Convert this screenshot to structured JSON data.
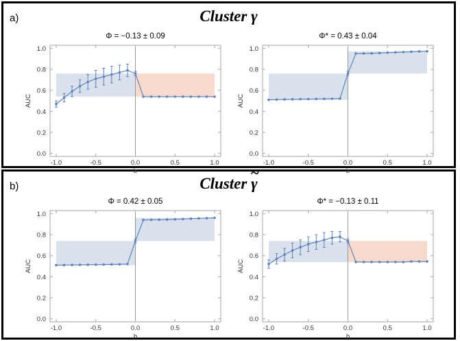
{
  "panels": [
    {
      "label": "a)",
      "title_word": "Cluster",
      "title_symbol": "γ"
    },
    {
      "label": "b)",
      "title_word": "Cluster",
      "title_symbol": "γ"
    }
  ],
  "colors": {
    "line": "#5c82bf",
    "band_blue": "#d9e1ec",
    "band_red": "#f8dacd",
    "frame": "#a6a6a6",
    "zero_line": "#8c8c8c",
    "tick_text": "#333333"
  },
  "chart_data": [
    {
      "id": "a-left",
      "type": "line",
      "title": "Φ = −0.13 ± 0.09",
      "xlabel": "b",
      "ylabel": "AUC",
      "xlim": [
        -1.0,
        1.0
      ],
      "ylim": [
        0.0,
        1.0
      ],
      "xticks": [
        "-1.0",
        "-0.5",
        "0.0",
        "0.5",
        "1.0"
      ],
      "yticks": [
        "0.0",
        "0.2",
        "0.4",
        "0.6",
        "0.8",
        "1.0"
      ],
      "bands": [
        {
          "x": [
            -1.0,
            0.0
          ],
          "y": [
            0.54,
            0.76
          ],
          "color": "blue"
        },
        {
          "x": [
            0.0,
            1.0
          ],
          "y": [
            0.54,
            0.76
          ],
          "color": "red"
        }
      ],
      "x": [
        -1.0,
        -0.9,
        -0.8,
        -0.7,
        -0.6,
        -0.5,
        -0.4,
        -0.3,
        -0.2,
        -0.1,
        0.0,
        0.1,
        0.2,
        0.3,
        0.4,
        0.5,
        0.6,
        0.7,
        0.8,
        0.9,
        1.0
      ],
      "values": [
        0.47,
        0.53,
        0.59,
        0.64,
        0.68,
        0.71,
        0.73,
        0.75,
        0.77,
        0.79,
        0.76,
        0.54,
        0.54,
        0.54,
        0.54,
        0.54,
        0.54,
        0.54,
        0.54,
        0.54,
        0.54
      ],
      "errors": [
        0.03,
        0.04,
        0.05,
        0.06,
        0.07,
        0.08,
        0.08,
        0.08,
        0.07,
        0.06,
        0.02,
        0.005,
        0.005,
        0.005,
        0.005,
        0.005,
        0.005,
        0.005,
        0.005,
        0.005,
        0.005
      ]
    },
    {
      "id": "a-right",
      "type": "line",
      "title": "Φ* = 0.43 ± 0.04",
      "xlabel": "b",
      "ylabel": "AUC",
      "xlim": [
        -1.0,
        1.0
      ],
      "ylim": [
        0.0,
        1.0
      ],
      "xticks": [
        "-1.0",
        "-0.5",
        "0.0",
        "0.5",
        "1.0"
      ],
      "yticks": [
        "0.0",
        "0.2",
        "0.4",
        "0.6",
        "0.8",
        "1.0"
      ],
      "bands": [
        {
          "x": [
            -1.0,
            0.0
          ],
          "y": [
            0.51,
            0.76
          ],
          "color": "blue"
        },
        {
          "x": [
            0.0,
            1.0
          ],
          "y": [
            0.76,
            0.97
          ],
          "color": "blue"
        }
      ],
      "x": [
        -1.0,
        -0.9,
        -0.8,
        -0.7,
        -0.6,
        -0.5,
        -0.4,
        -0.3,
        -0.2,
        -0.1,
        0.0,
        0.1,
        0.2,
        0.3,
        0.4,
        0.5,
        0.6,
        0.7,
        0.8,
        0.9,
        1.0
      ],
      "values": [
        0.51,
        0.512,
        0.514,
        0.515,
        0.516,
        0.517,
        0.518,
        0.519,
        0.52,
        0.522,
        0.76,
        0.95,
        0.951,
        0.952,
        0.955,
        0.958,
        0.961,
        0.964,
        0.967,
        0.97,
        0.972
      ],
      "errors": [
        0.003,
        0.003,
        0.003,
        0.003,
        0.003,
        0.003,
        0.003,
        0.003,
        0.003,
        0.003,
        0.02,
        0.004,
        0.004,
        0.004,
        0.004,
        0.004,
        0.004,
        0.004,
        0.004,
        0.004,
        0.004
      ]
    },
    {
      "id": "b-left",
      "type": "line",
      "title": "Φ = 0.42 ± 0.05",
      "xlabel": "b",
      "ylabel": "AUC",
      "xlim": [
        -1.0,
        1.0
      ],
      "ylim": [
        0.0,
        1.0
      ],
      "xticks": [
        "-1.0",
        "-0.5",
        "0.0",
        "0.5",
        "1.0"
      ],
      "yticks": [
        "0.0",
        "0.2",
        "0.4",
        "0.6",
        "0.8",
        "1.0"
      ],
      "bands": [
        {
          "x": [
            -1.0,
            0.0
          ],
          "y": [
            0.51,
            0.74
          ],
          "color": "blue"
        },
        {
          "x": [
            0.0,
            1.0
          ],
          "y": [
            0.74,
            0.96
          ],
          "color": "blue"
        }
      ],
      "x": [
        -1.0,
        -0.9,
        -0.8,
        -0.7,
        -0.6,
        -0.5,
        -0.4,
        -0.3,
        -0.2,
        -0.1,
        0.0,
        0.1,
        0.2,
        0.3,
        0.4,
        0.5,
        0.6,
        0.7,
        0.8,
        0.9,
        1.0
      ],
      "values": [
        0.51,
        0.511,
        0.512,
        0.513,
        0.514,
        0.515,
        0.516,
        0.517,
        0.518,
        0.52,
        0.74,
        0.94,
        0.941,
        0.942,
        0.944,
        0.946,
        0.949,
        0.952,
        0.955,
        0.957,
        0.96
      ],
      "errors": [
        0.003,
        0.003,
        0.003,
        0.003,
        0.003,
        0.003,
        0.003,
        0.003,
        0.003,
        0.003,
        0.02,
        0.004,
        0.004,
        0.004,
        0.004,
        0.004,
        0.004,
        0.004,
        0.004,
        0.004,
        0.004
      ]
    },
    {
      "id": "b-right",
      "type": "line",
      "title": "Φ* = −0.13 ± 0.11",
      "xlabel": "b",
      "ylabel": "AUC",
      "xlim": [
        -1.0,
        1.0
      ],
      "ylim": [
        0.0,
        1.0
      ],
      "xticks": [
        "-1.0",
        "-0.5",
        "0.0",
        "0.5",
        "1.0"
      ],
      "yticks": [
        "0.0",
        "0.2",
        "0.4",
        "0.6",
        "0.8",
        "1.0"
      ],
      "bands": [
        {
          "x": [
            -1.0,
            0.0
          ],
          "y": [
            0.54,
            0.74
          ],
          "color": "blue"
        },
        {
          "x": [
            0.0,
            1.0
          ],
          "y": [
            0.54,
            0.74
          ],
          "color": "red"
        }
      ],
      "x": [
        -1.0,
        -0.9,
        -0.8,
        -0.7,
        -0.6,
        -0.5,
        -0.4,
        -0.3,
        -0.2,
        -0.1,
        0.0,
        0.1,
        0.2,
        0.3,
        0.4,
        0.5,
        0.6,
        0.7,
        0.8,
        0.9,
        1.0
      ],
      "values": [
        0.52,
        0.57,
        0.61,
        0.65,
        0.68,
        0.71,
        0.73,
        0.75,
        0.77,
        0.78,
        0.74,
        0.54,
        0.54,
        0.54,
        0.54,
        0.54,
        0.54,
        0.54,
        0.545,
        0.545,
        0.545
      ],
      "errors": [
        0.04,
        0.05,
        0.06,
        0.07,
        0.07,
        0.07,
        0.07,
        0.07,
        0.06,
        0.05,
        0.02,
        0.005,
        0.005,
        0.005,
        0.005,
        0.005,
        0.005,
        0.005,
        0.005,
        0.005,
        0.005
      ]
    }
  ]
}
